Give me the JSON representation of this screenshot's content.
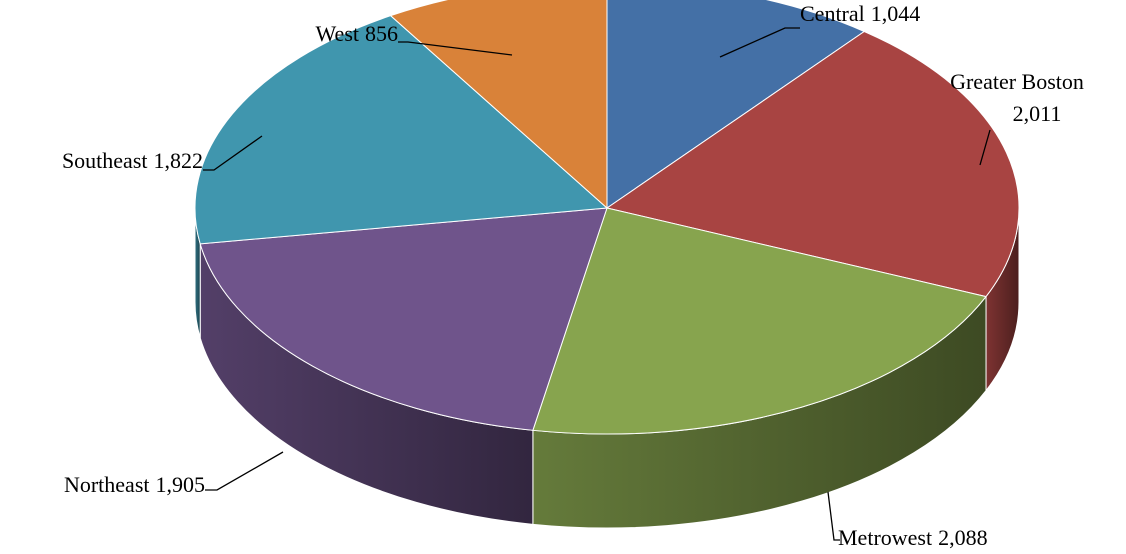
{
  "chart_data": {
    "type": "pie",
    "categories": [
      "Central",
      "Greater Boston",
      "Metrowest",
      "Northeast",
      "Southeast",
      "West"
    ],
    "values": [
      1044,
      2011,
      2088,
      1905,
      1822,
      856
    ],
    "value_labels": [
      "1,044",
      "2,011",
      "2,088",
      "1,905",
      "1,822",
      "856"
    ],
    "colors": [
      "#4470a6",
      "#a84442",
      "#87a44e",
      "#6f548b",
      "#4096ae",
      "#d98239"
    ]
  }
}
